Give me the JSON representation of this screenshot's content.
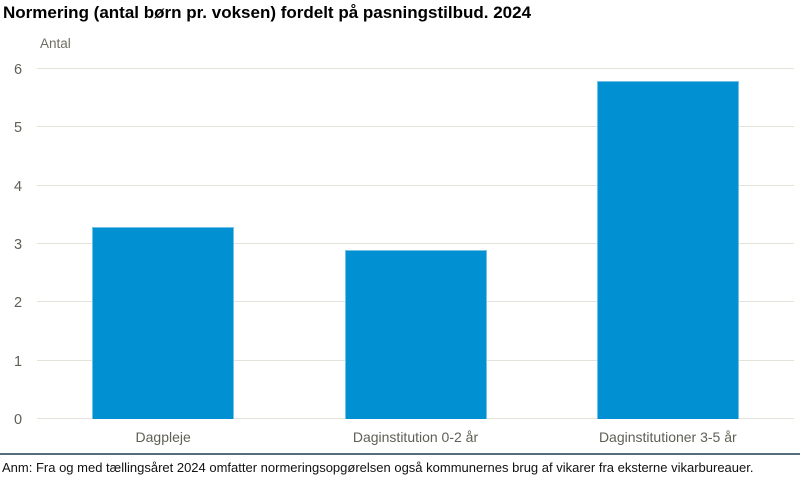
{
  "title": "Normering (antal børn pr. voksen) fordelt på pasningstilbud. 2024",
  "y_axis_unit_label": "Antal",
  "footnote": "Anm: Fra og med tællingsåret 2024 omfatter normeringsopgørelsen også kommunernes brug af vikarer fra eksterne vikarbureauer.",
  "colors": {
    "bar": "#0191d2",
    "bar_edge": "rgba(255,255,255,0.45)",
    "gridline": "#e3e3da",
    "axis_text": "#5f5f55",
    "title_text": "#000000",
    "footnote_divider": "#54707c"
  },
  "chart_data": {
    "type": "bar",
    "title": "Normering (antal børn pr. voksen) fordelt på pasningstilbud. 2024",
    "categories": [
      "Dagpleje",
      "Daginstitution 0-2 år",
      "Daginstitutioner 3-5 år"
    ],
    "values": [
      3.3,
      2.9,
      5.8
    ],
    "xlabel": "",
    "ylabel": "Antal",
    "ylim": [
      0,
      6
    ],
    "yticks": [
      0,
      1,
      2,
      3,
      4,
      5,
      6
    ],
    "grid": true,
    "legend": false,
    "annotation": "Anm: Fra og med tællingsåret 2024 omfatter normeringsopgørelsen også kommunernes brug af vikarer fra eksterne vikarbureauer."
  }
}
